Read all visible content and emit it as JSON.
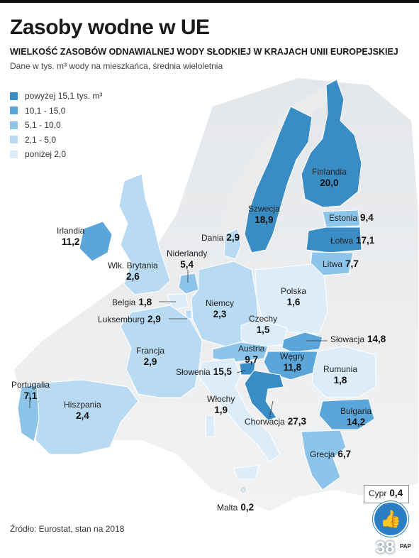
{
  "title": "Zasoby wodne w UE",
  "subtitle": "WIELKOŚĆ ZASOBÓW ODNAWIALNEJ WODY SŁODKIEJ W KRAJACH UNII EUROPEJSKIEJ",
  "note": "Dane w tys. m³ wody na mieszkańca, średnia wieloletnia",
  "legend": [
    {
      "label": "powyżej 15,1 tys. m³",
      "color": "#3a8cc4"
    },
    {
      "label": "10,1 - 15,0",
      "color": "#5aa6da"
    },
    {
      "label": "5,1 - 10,0",
      "color": "#8cc4ea"
    },
    {
      "label": "2,1 - 5,0",
      "color": "#b8daf2"
    },
    {
      "label": "poniżej 2,0",
      "color": "#dcedf9"
    }
  ],
  "countries": {
    "finlandia": {
      "name": "Finlandia",
      "value": "20,0"
    },
    "szwecja": {
      "name": "Szwecja",
      "value": "18,9"
    },
    "estonia": {
      "name": "Estonia",
      "value": "9,4"
    },
    "lotwa": {
      "name": "Łotwa",
      "value": "17,1"
    },
    "litwa": {
      "name": "Litwa",
      "value": "7,7"
    },
    "dania": {
      "name": "Dania",
      "value": "2,9"
    },
    "irlandia": {
      "name": "Irlandia",
      "value": "11,2"
    },
    "wlk_brytania": {
      "name": "Wlk. Brytania",
      "value": "2,6"
    },
    "niderlandy": {
      "name": "Niderlandy",
      "value": "5,4"
    },
    "belgia": {
      "name": "Belgia",
      "value": "1,8"
    },
    "luksemburg": {
      "name": "Luksemburg",
      "value": "2,9"
    },
    "niemcy": {
      "name": "Niemcy",
      "value": "2,3"
    },
    "polska": {
      "name": "Polska",
      "value": "1,6"
    },
    "czechy": {
      "name": "Czechy",
      "value": "1,5"
    },
    "slowacja": {
      "name": "Słowacja",
      "value": "14,8"
    },
    "austria": {
      "name": "Austria",
      "value": "9,7"
    },
    "wegry": {
      "name": "Węgry",
      "value": "11,8"
    },
    "francja": {
      "name": "Francja",
      "value": "2,9"
    },
    "slowenia": {
      "name": "Słowenia",
      "value": "15,5"
    },
    "rumunia": {
      "name": "Rumunia",
      "value": "1,8"
    },
    "portugalia": {
      "name": "Portugalia",
      "value": "7,1"
    },
    "hiszpania": {
      "name": "Hiszpania",
      "value": "2,4"
    },
    "wlochy": {
      "name": "Włochy",
      "value": "1,9"
    },
    "chorwacja": {
      "name": "Chorwacja",
      "value": "27,3"
    },
    "bulgaria": {
      "name": "Bułgaria",
      "value": "14,2"
    },
    "grecja": {
      "name": "Grecja",
      "value": "6,7"
    },
    "cypr": {
      "name": "Cypr",
      "value": "0,4"
    },
    "malta": {
      "name": "Malta",
      "value": "0,2"
    }
  },
  "source": "Źródło: Eurostat, stan na 2018",
  "page_number": "38",
  "agency": "PAP"
}
